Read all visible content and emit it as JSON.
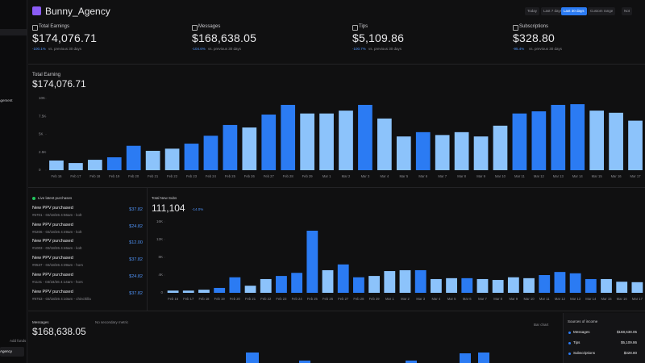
{
  "sidebar": {
    "items": [
      "agement"
    ],
    "footer_link": "Add funds",
    "footer_label": "Agency"
  },
  "header": {
    "title": "Bunny_Agency",
    "ranges": [
      "Today",
      "Last 7 days",
      "Last 30 days",
      "Custom range",
      "Not"
    ],
    "active_range": 2
  },
  "kpis": [
    {
      "label": "Total Earnings",
      "value": "$174,076.71",
      "change": "-100.1%",
      "note": "vs. previous 30 days"
    },
    {
      "label": "Messages",
      "value": "$168,638.05",
      "change": "-104.6%",
      "note": "vs. previous 30 days"
    },
    {
      "label": "Tips",
      "value": "$5,109.86",
      "change": "-100.7%",
      "note": "vs. previous 30 days"
    },
    {
      "label": "Subscriptions",
      "value": "$328.80",
      "change": "-95.4%",
      "note": "vs. previous 30 days"
    }
  ],
  "chart_data": [
    {
      "type": "bar",
      "title": "Total Earning",
      "subtitle": "$174,076.71",
      "categories": [
        "Feb 16",
        "Feb 17",
        "Feb 18",
        "Feb 19",
        "Feb 20",
        "Feb 21",
        "Feb 22",
        "Feb 23",
        "Feb 24",
        "Feb 25",
        "Feb 26",
        "Feb 27",
        "Feb 28",
        "Feb 29",
        "Mar 1",
        "Mar 2",
        "Mar 3",
        "Mar 4",
        "Mar 5",
        "Mar 6",
        "Mar 7",
        "Mar 8",
        "Mar 9",
        "Mar 10",
        "Mar 11",
        "Mar 12",
        "Mar 13",
        "Mar 14",
        "Mar 15",
        "Mar 16",
        "Mar 17"
      ],
      "values": [
        1350,
        1000,
        1450,
        1800,
        3400,
        2700,
        3000,
        3700,
        4800,
        6300,
        5950,
        7750,
        9100,
        7900,
        7900,
        8300,
        9100,
        7200,
        4700,
        5300,
        4900,
        5300,
        4700,
        6200,
        7900,
        8200,
        9100,
        9200,
        8300,
        8000,
        6900
      ],
      "bar_colors": [
        "#8cc3fb",
        "#8cc3fb",
        "#8cc3fb",
        "#2b7bf3",
        "#2b7bf3",
        "#8cc3fb",
        "#8cc3fb",
        "#2b7bf3",
        "#2b7bf3",
        "#2b7bf3",
        "#8cc3fb",
        "#2b7bf3",
        "#2b7bf3",
        "#8cc3fb",
        "#8cc3fb",
        "#8cc3fb",
        "#2b7bf3",
        "#8cc3fb",
        "#8cc3fb",
        "#2b7bf3",
        "#8cc3fb",
        "#8cc3fb",
        "#8cc3fb",
        "#8cc3fb",
        "#2b7bf3",
        "#2b7bf3",
        "#2b7bf3",
        "#2b7bf3",
        "#8cc3fb",
        "#8cc3fb",
        "#8cc3fb"
      ],
      "ylim": [
        0,
        10000
      ],
      "yticks": [
        0,
        {
          "value": 2500,
          "label": "2.5K"
        },
        {
          "value": 5000,
          "label": "5K"
        },
        {
          "value": 7500,
          "label": "7.5K"
        },
        {
          "value": 10000,
          "label": "10K"
        }
      ],
      "grid": false
    },
    {
      "type": "bar",
      "title": "Total New Subs",
      "subtitle": "111,104",
      "change": "-14.0%",
      "categories": [
        "Feb 16",
        "Feb 17",
        "Feb 18",
        "Feb 19",
        "Feb 20",
        "Feb 21",
        "Feb 22",
        "Feb 23",
        "Feb 24",
        "Feb 25",
        "Feb 26",
        "Feb 27",
        "Feb 28",
        "Feb 29",
        "Mar 1",
        "Mar 2",
        "Mar 3",
        "Mar 4",
        "Mar 5",
        "Mar 6",
        "Mar 7",
        "Mar 8",
        "Mar 9",
        "Mar 10",
        "Mar 11",
        "Mar 12",
        "Mar 13",
        "Mar 14",
        "Mar 15",
        "Mar 16",
        "Mar 17"
      ],
      "values": [
        500,
        500,
        700,
        1100,
        3500,
        1600,
        3100,
        3800,
        4500,
        14000,
        5100,
        6400,
        3500,
        3800,
        4900,
        5100,
        5100,
        3100,
        3300,
        3300,
        3100,
        2900,
        3500,
        3300,
        4000,
        4700,
        4400,
        3100,
        3100,
        2500,
        2400
      ],
      "bar_colors": [
        "#8cc3fb",
        "#8cc3fb",
        "#8cc3fb",
        "#2b7bf3",
        "#2b7bf3",
        "#8cc3fb",
        "#8cc3fb",
        "#2b7bf3",
        "#2b7bf3",
        "#2b7bf3",
        "#8cc3fb",
        "#2b7bf3",
        "#2b7bf3",
        "#8cc3fb",
        "#8cc3fb",
        "#8cc3fb",
        "#2b7bf3",
        "#8cc3fb",
        "#8cc3fb",
        "#2b7bf3",
        "#8cc3fb",
        "#8cc3fb",
        "#8cc3fb",
        "#8cc3fb",
        "#2b7bf3",
        "#2b7bf3",
        "#2b7bf3",
        "#2b7bf3",
        "#8cc3fb",
        "#8cc3fb",
        "#8cc3fb"
      ],
      "ylim": [
        0,
        16000
      ],
      "yticks": [
        0,
        {
          "value": 4000,
          "label": "4K"
        },
        {
          "value": 8000,
          "label": "8K"
        },
        {
          "value": 12000,
          "label": "12K"
        },
        {
          "value": 16000,
          "label": "16K"
        }
      ],
      "grid": false
    }
  ],
  "purchases": {
    "title": "Live latest purchases",
    "items": [
      {
        "title": "New PPV purchased",
        "detail": "#6701 - 03/18/26 4:56am - kolt",
        "amount": "$37.82"
      },
      {
        "title": "New PPV purchased",
        "detail": "#0206 - 03/18/26 4:49am - kolt",
        "amount": "$24.82"
      },
      {
        "title": "New PPV purchased",
        "detail": "#1003 - 03/18/26 4:46am - kolt",
        "amount": "$12.00"
      },
      {
        "title": "New PPV purchased",
        "detail": "#0537 - 03/18/26 4:39am - hors",
        "amount": "$37.82"
      },
      {
        "title": "New PPV purchased",
        "detail": "#1131 - 03/18/26 4:14am - hors",
        "amount": "$24.82"
      },
      {
        "title": "New PPV purchased",
        "detail": "#9753 - 03/18/26 4:10am - chinchilla",
        "amount": "$37.82"
      }
    ]
  },
  "messages_panel": {
    "label": "Messages",
    "value": "$168,638.05",
    "secondary": "No secondary metric",
    "view": "Bar chart"
  },
  "sources": {
    "title": "Sources of income",
    "rows": [
      {
        "name": "Messages",
        "amount": "$168,638.05"
      },
      {
        "name": "Tips",
        "amount": "$5,109.86"
      },
      {
        "name": "Subscriptions",
        "amount": "$328.80"
      }
    ]
  }
}
